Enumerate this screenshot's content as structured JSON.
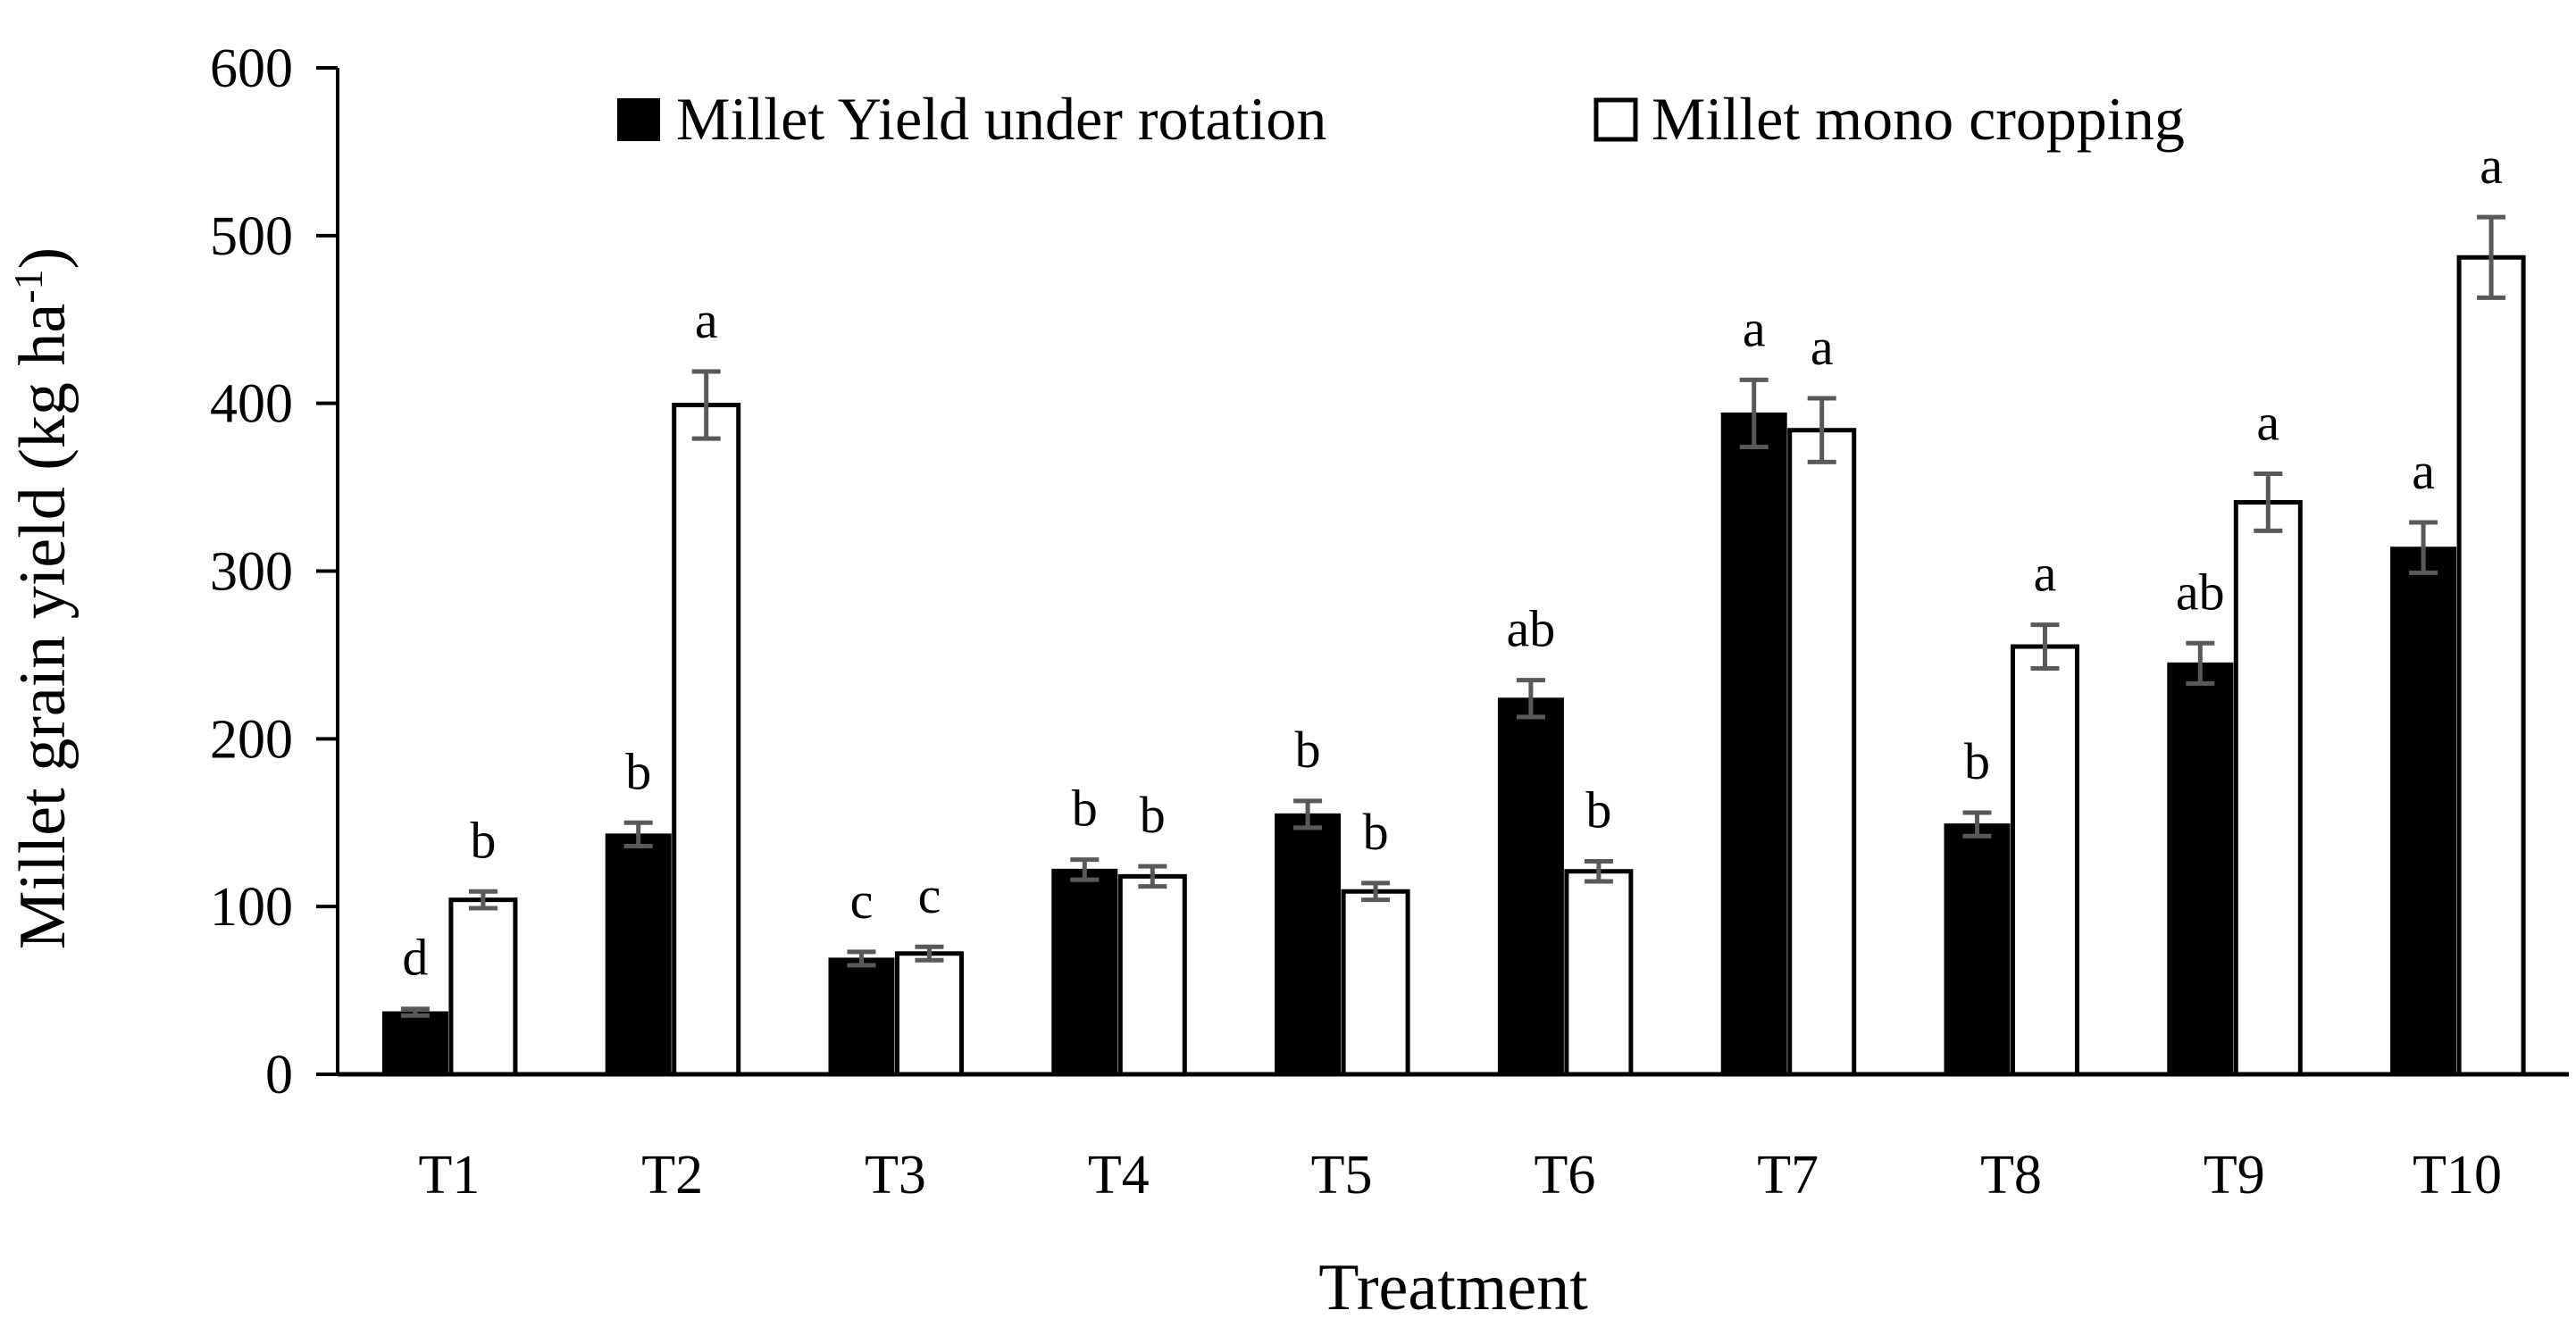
{
  "chart_data": {
    "type": "bar",
    "title": "",
    "xlabel": "Treatment",
    "ylabel": {
      "main": "Millet grain yield (kg ha",
      "superscript": "-1",
      "close": ")"
    },
    "ylim": [
      0,
      600
    ],
    "yticks": [
      "0",
      "100",
      "200",
      "300",
      "400",
      "500",
      "600"
    ],
    "ytick_values": [
      0,
      100,
      200,
      300,
      400,
      500,
      600
    ],
    "categories": [
      "T1",
      "T2",
      "T3",
      "T4",
      "T5",
      "T6",
      "T7",
      "T8",
      "T9",
      "T10"
    ],
    "legend_position": "top",
    "series": [
      {
        "name": "Millet Yield  under rotation",
        "fill": "#000000",
        "values": [
          37,
          143,
          69,
          122,
          155,
          224,
          394,
          149,
          245,
          314
        ],
        "errors": [
          2,
          7,
          4,
          6,
          8,
          11,
          20,
          7,
          12,
          15
        ],
        "labels": [
          "d",
          "b",
          "c",
          "b",
          "b",
          "ab",
          "a",
          "b",
          "ab",
          "a"
        ]
      },
      {
        "name": "Millet mono cropping",
        "fill": "#ffffff",
        "values": [
          104,
          399,
          72,
          118,
          109,
          121,
          384,
          255,
          341,
          487
        ],
        "errors": [
          5,
          20,
          4,
          6,
          5,
          6,
          19,
          13,
          17,
          24
        ],
        "labels": [
          "b",
          "a",
          "c",
          "b",
          "b",
          "b",
          "a",
          "a",
          "a",
          "a"
        ]
      }
    ]
  },
  "colors": {
    "axis": "#000000",
    "error_bar": "#595959"
  }
}
